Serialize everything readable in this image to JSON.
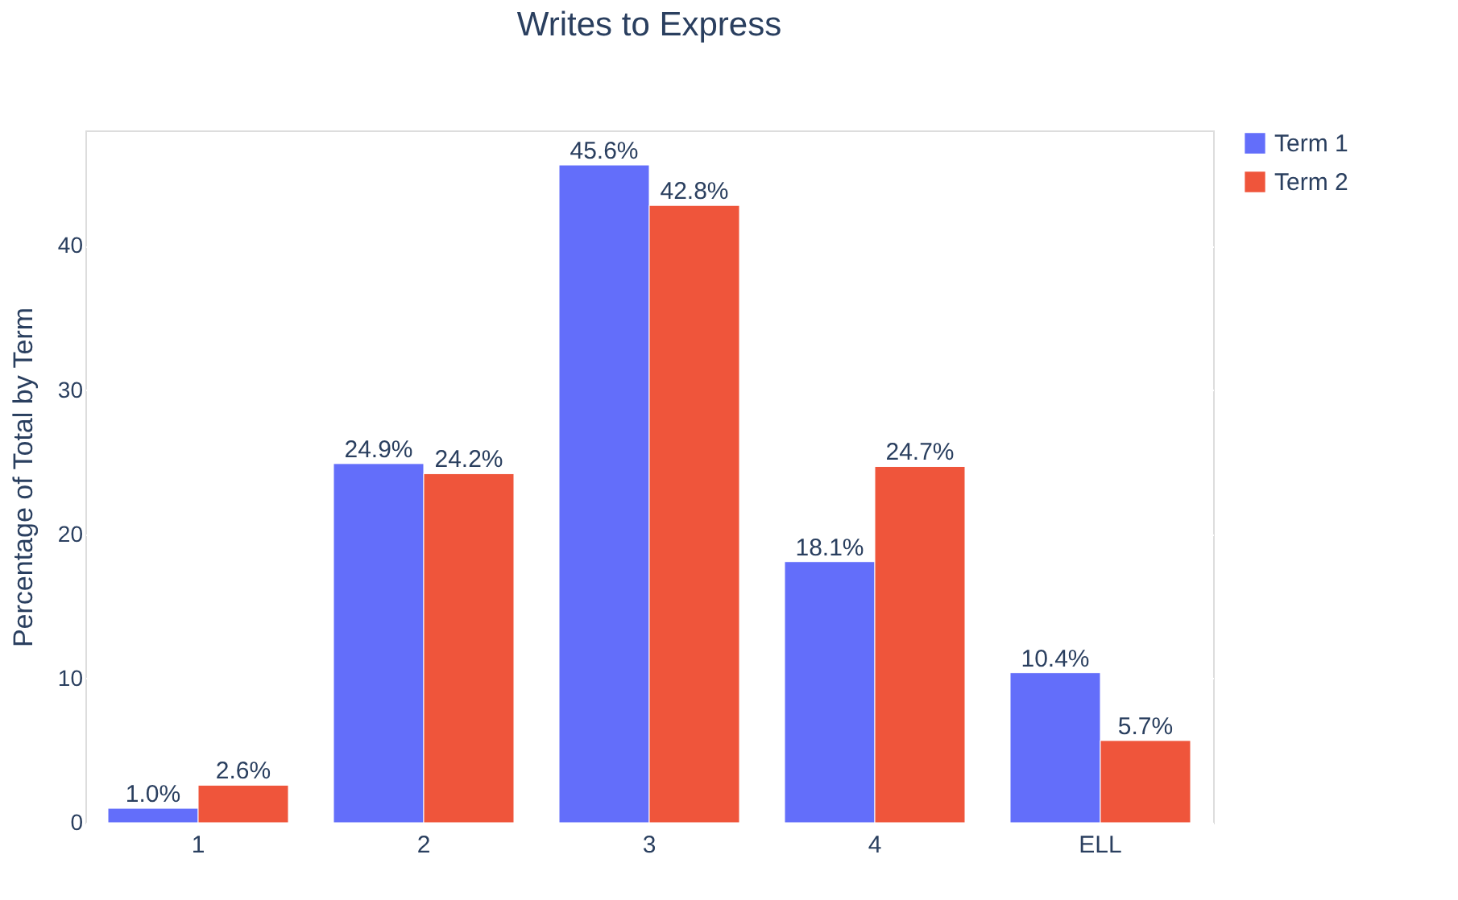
{
  "chart_data": {
    "type": "bar",
    "title": "Writes to Express",
    "ylabel": "Percentage of Total by Term",
    "categories": [
      "1",
      "2",
      "3",
      "4",
      "ELL"
    ],
    "series": [
      {
        "name": "Term 1",
        "color": "#636efa",
        "values": [
          1.0,
          24.9,
          45.6,
          18.1,
          10.4
        ],
        "value_labels": [
          "1.0%",
          "24.9%",
          "45.6%",
          "18.1%",
          "10.4%"
        ]
      },
      {
        "name": "Term 2",
        "color": "#ef553b",
        "values": [
          2.6,
          24.2,
          42.8,
          24.7,
          5.7
        ],
        "value_labels": [
          "2.6%",
          "24.2%",
          "42.8%",
          "24.7%",
          "5.7%"
        ]
      }
    ],
    "ylim": [
      0,
      48
    ],
    "yticks": [
      0,
      10,
      20,
      30,
      40
    ],
    "grid": "y",
    "legend": "top right"
  }
}
